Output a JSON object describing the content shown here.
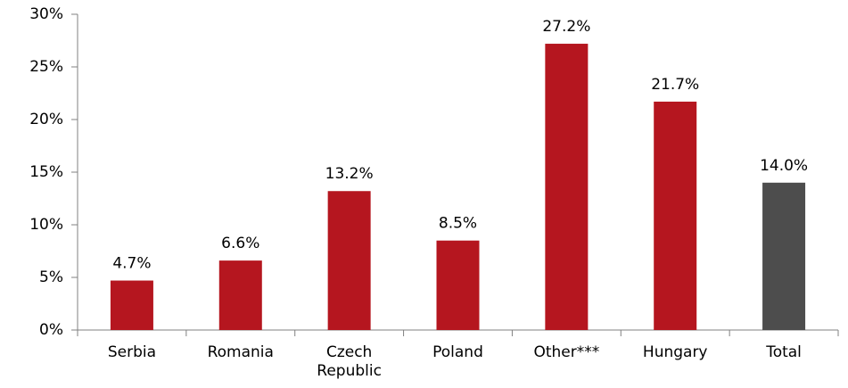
{
  "chart_data": {
    "type": "bar",
    "categories": [
      "Serbia",
      "Romania",
      "Czech Republic",
      "Poland",
      "Other***",
      "Hungary",
      "Total"
    ],
    "values": [
      4.7,
      6.6,
      13.2,
      8.5,
      27.2,
      21.7,
      14.0
    ],
    "value_labels": [
      "4.7%",
      "6.6%",
      "13.2%",
      "8.5%",
      "27.2%",
      "21.7%",
      "14.0%"
    ],
    "colors": [
      "#b5161f",
      "#b5161f",
      "#b5161f",
      "#b5161f",
      "#b5161f",
      "#b5161f",
      "#4d4d4d"
    ],
    "ylim": [
      0,
      30
    ],
    "yticks": [
      {
        "value": 0,
        "label": "0%"
      },
      {
        "value": 5,
        "label": "5%"
      },
      {
        "value": 10,
        "label": "10%"
      },
      {
        "value": 15,
        "label": "15%"
      },
      {
        "value": 20,
        "label": "20%"
      },
      {
        "value": 25,
        "label": "25%"
      },
      {
        "value": 30,
        "label": "30%"
      }
    ],
    "grid": false
  }
}
